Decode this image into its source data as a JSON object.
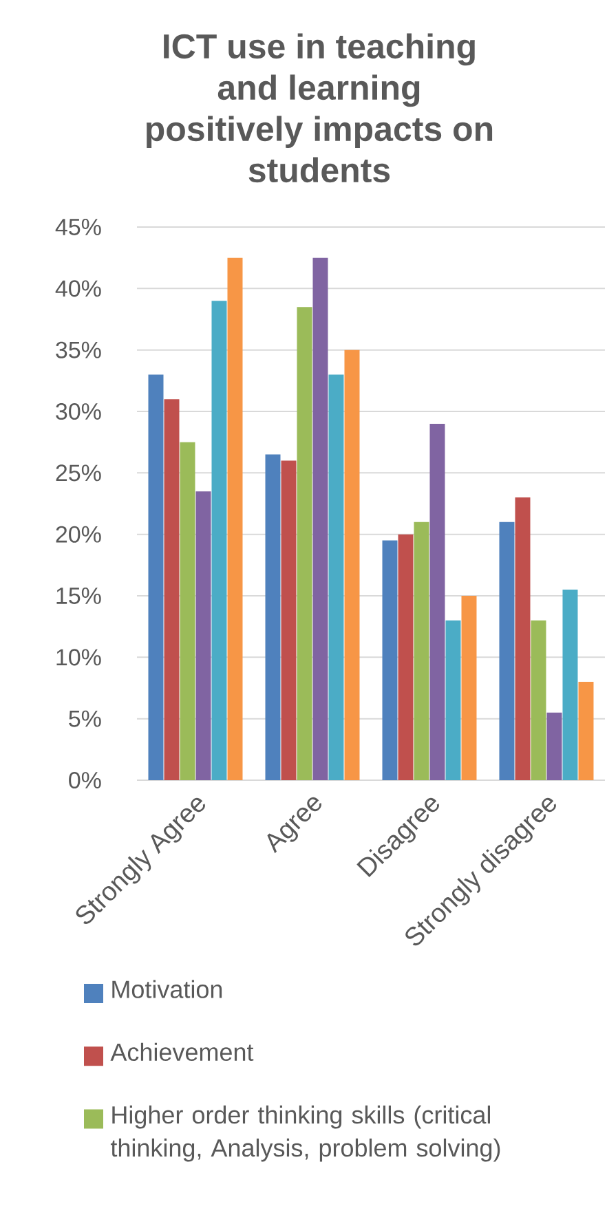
{
  "chart_data": {
    "type": "bar",
    "title": "ICT use in teaching and learning positively impacts on students",
    "categories": [
      "Strongly Agree",
      "Agree",
      "Disagree",
      "Strongly disagree"
    ],
    "series": [
      {
        "name": "Motivation",
        "color": "#4f81bd",
        "values": [
          33,
          26.5,
          19.5,
          21
        ]
      },
      {
        "name": "Achievement",
        "color": "#c0504d",
        "values": [
          31,
          26,
          20,
          23
        ]
      },
      {
        "name": "Higher order thinking skills (critical thinking, Analysis, problem solving)",
        "color": "#9bbb59",
        "values": [
          27.5,
          38.5,
          21,
          13
        ]
      },
      {
        "color": "#8064a2",
        "values": [
          23.5,
          42.5,
          29,
          5.5
        ]
      },
      {
        "color": "#4bacc6",
        "values": [
          39,
          33,
          13,
          15.5
        ]
      },
      {
        "color": "#f79646",
        "values": [
          42.5,
          35,
          15,
          8
        ]
      }
    ],
    "ylim": [
      0,
      45
    ],
    "yticks": [
      {
        "value": 0,
        "label": "0%"
      },
      {
        "value": 5,
        "label": "5%"
      },
      {
        "value": 10,
        "label": "10%"
      },
      {
        "value": 15,
        "label": "15%"
      },
      {
        "value": 20,
        "label": "20%"
      },
      {
        "value": 25,
        "label": "25%"
      },
      {
        "value": 30,
        "label": "30%"
      },
      {
        "value": 35,
        "label": "35%"
      },
      {
        "value": 40,
        "label": "40%"
      },
      {
        "value": 45,
        "label": "45%"
      }
    ],
    "grid": "y",
    "legend": "bottom"
  }
}
